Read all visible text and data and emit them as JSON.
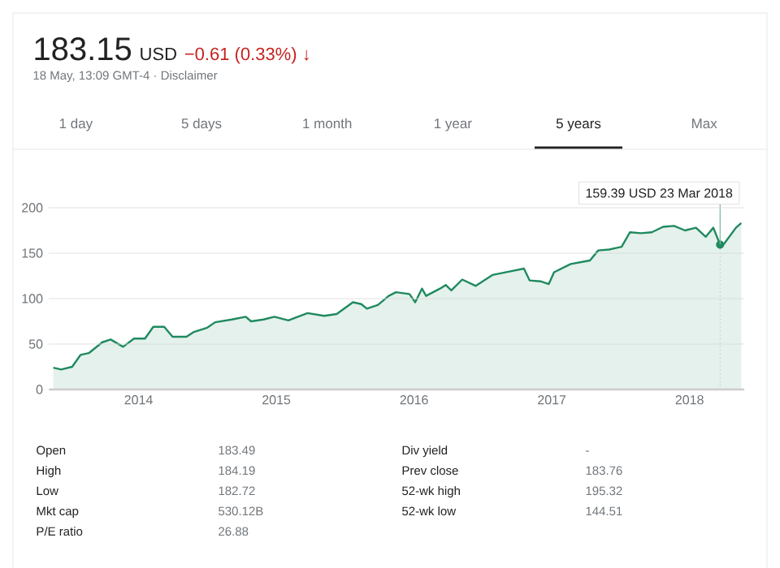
{
  "chart_data": {
    "type": "area",
    "title": "183.15",
    "subtitle": "18 May, 13:09 GMT-4 · Disclaimer",
    "x": [
      "2013-05-20",
      "2013-06-10",
      "2013-07-09",
      "2013-07-31",
      "2013-08-22",
      "2013-09-27",
      "2013-10-19",
      "2013-11-21",
      "2013-12-20",
      "2014-01-18",
      "2014-02-09",
      "2014-03-10",
      "2014-04-01",
      "2014-05-08",
      "2014-05-26",
      "2014-07-02",
      "2014-07-23",
      "2014-09-05",
      "2014-10-12",
      "2014-10-26",
      "2014-11-28",
      "2014-12-27",
      "2015-02-02",
      "2015-02-27",
      "2015-03-25",
      "2015-05-08",
      "2015-06-10",
      "2015-07-23",
      "2015-08-14",
      "2015-08-29",
      "2015-09-27",
      "2015-10-26",
      "2015-11-14",
      "2015-12-20",
      "2016-01-04",
      "2016-01-22",
      "2016-02-02",
      "2016-03-10",
      "2016-03-25",
      "2016-04-09",
      "2016-05-08",
      "2016-06-13",
      "2016-07-27",
      "2016-09-13",
      "2016-10-19",
      "2016-11-03",
      "2016-12-02",
      "2016-12-24",
      "2017-01-07",
      "2017-02-20",
      "2017-04-12",
      "2017-05-04",
      "2017-06-02",
      "2017-07-05",
      "2017-07-27",
      "2017-08-25",
      "2017-09-23",
      "2017-10-23",
      "2017-11-21",
      "2017-12-20",
      "2018-01-18",
      "2018-02-13",
      "2018-03-05",
      "2018-03-23",
      "2018-04-02",
      "2018-05-04",
      "2018-05-18"
    ],
    "values": [
      24,
      22,
      25,
      38,
      40,
      52,
      55,
      47,
      56,
      56,
      69,
      69,
      58,
      58,
      63,
      68,
      74,
      77,
      80,
      75,
      77,
      80,
      76,
      80,
      84,
      81,
      83,
      96,
      94,
      89,
      93,
      103,
      107,
      105,
      96,
      111,
      103,
      111,
      115,
      109,
      121,
      114,
      126,
      130,
      133,
      120,
      119,
      116,
      129,
      138,
      142,
      153,
      154,
      157,
      173,
      172,
      173,
      179,
      180,
      175,
      178,
      168,
      178,
      159.39,
      160,
      178,
      183.15
    ],
    "color": "#1f8a5e",
    "xlim": [
      "2013-05-08",
      "2018-05-26"
    ],
    "xticks": [
      "2014",
      "2015",
      "2016",
      "2017",
      "2018"
    ],
    "ylim": [
      0,
      200
    ],
    "yticks": [
      0,
      50,
      100,
      150,
      200
    ],
    "grid": "y",
    "ref_lines": [
      {
        "axis": "x",
        "value": "2018-03-23",
        "line_style": "dotted",
        "color": "#9e9e9e"
      }
    ],
    "annotations": [
      "USD",
      "−0.61 (0.33%) ↓",
      "1 day",
      "5 days",
      "1 month",
      "1 year",
      "5 years",
      "Max",
      {
        "text": "159.39 USD  23 Mar 2018",
        "x": "2018-03-23",
        "y": 159.39
      },
      "Open",
      "183.49",
      "High",
      "184.19",
      "Low",
      "182.72",
      "Mkt cap",
      "530.12B",
      "P/E ratio",
      "26.88",
      "Div yield",
      "-",
      "Prev close",
      "183.76",
      "52-wk high",
      "195.32",
      "52-wk low",
      "144.51"
    ]
  }
}
